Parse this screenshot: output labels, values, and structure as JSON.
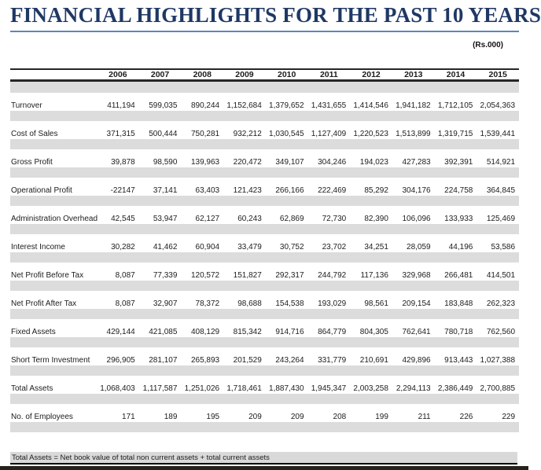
{
  "header": {
    "title": "FINANCIAL HIGHLIGHTS FOR THE PAST 10 YEARS",
    "units": "(Rs.000)"
  },
  "colors": {
    "title_navy": "#1f3864",
    "rule_blue": "#5b87bb",
    "band_gray": "#dcdcdc",
    "footnote_gray": "#d9d9d9",
    "bottom_bar_dark": "#23231c"
  },
  "table": {
    "years": [
      "2006",
      "2007",
      "2008",
      "2009",
      "2010",
      "2011",
      "2012",
      "2013",
      "2014",
      "2015"
    ],
    "rows": [
      {
        "label": "Turnover",
        "values": [
          "411,194",
          "599,035",
          "890,244",
          "1,152,684",
          "1,379,652",
          "1,431,655",
          "1,414,546",
          "1,941,182",
          "1,712,105",
          "2,054,363"
        ]
      },
      {
        "label": "Cost of Sales",
        "values": [
          "371,315",
          "500,444",
          "750,281",
          "932,212",
          "1,030,545",
          "1,127,409",
          "1,220,523",
          "1,513,899",
          "1,319,715",
          "1,539,441"
        ]
      },
      {
        "label": "Gross Profit",
        "values": [
          "39,878",
          "98,590",
          "139,963",
          "220,472",
          "349,107",
          "304,246",
          "194,023",
          "427,283",
          "392,391",
          "514,921"
        ]
      },
      {
        "label": "Operational Profit",
        "values": [
          "-22147",
          "37,141",
          "63,403",
          "121,423",
          "266,166",
          "222,469",
          "85,292",
          "304,176",
          "224,758",
          "364,845"
        ]
      },
      {
        "label": "Administration Overhead",
        "values": [
          "42,545",
          "53,947",
          "62,127",
          "60,243",
          "62,869",
          "72,730",
          "82,390",
          "106,096",
          "133,933",
          "125,469"
        ]
      },
      {
        "label": "Interest Income",
        "values": [
          "30,282",
          "41,462",
          "60,904",
          "33,479",
          "30,752",
          "23,702",
          "34,251",
          "28,059",
          "44,196",
          "53,586"
        ]
      },
      {
        "label": "Net Profit Before Tax",
        "values": [
          "8,087",
          "77,339",
          "120,572",
          "151,827",
          "292,317",
          "244,792",
          "117,136",
          "329,968",
          "266,481",
          "414,501"
        ]
      },
      {
        "label": "Net Profit After Tax",
        "values": [
          "8,087",
          "32,907",
          "78,372",
          "98,688",
          "154,538",
          "193,029",
          "98,561",
          "209,154",
          "183,848",
          "262,323"
        ]
      },
      {
        "label": "Fixed Assets",
        "values": [
          "429,144",
          "421,085",
          "408,129",
          "815,342",
          "914,716",
          "864,779",
          "804,305",
          "762,641",
          "780,718",
          "762,560"
        ]
      },
      {
        "label": "Short Term Investment",
        "values": [
          "296,905",
          "281,107",
          "265,893",
          "201,529",
          "243,264",
          "331,779",
          "210,691",
          "429,896",
          "913,443",
          "1,027,388"
        ]
      },
      {
        "label": "Total Assets",
        "values": [
          "1,068,403",
          "1,117,587",
          "1,251,026",
          "1,718,461",
          "1,887,430",
          "1,945,347",
          "2,003,258",
          "2,294,113",
          "2,386,449",
          "2,700,885"
        ]
      },
      {
        "label": "No. of Employees",
        "values": [
          "171",
          "189",
          "195",
          "209",
          "209",
          "208",
          "199",
          "211",
          "226",
          "229"
        ]
      }
    ]
  },
  "footnote": {
    "text": "Total Assets = Net book value of total non current assets + total current assets"
  }
}
